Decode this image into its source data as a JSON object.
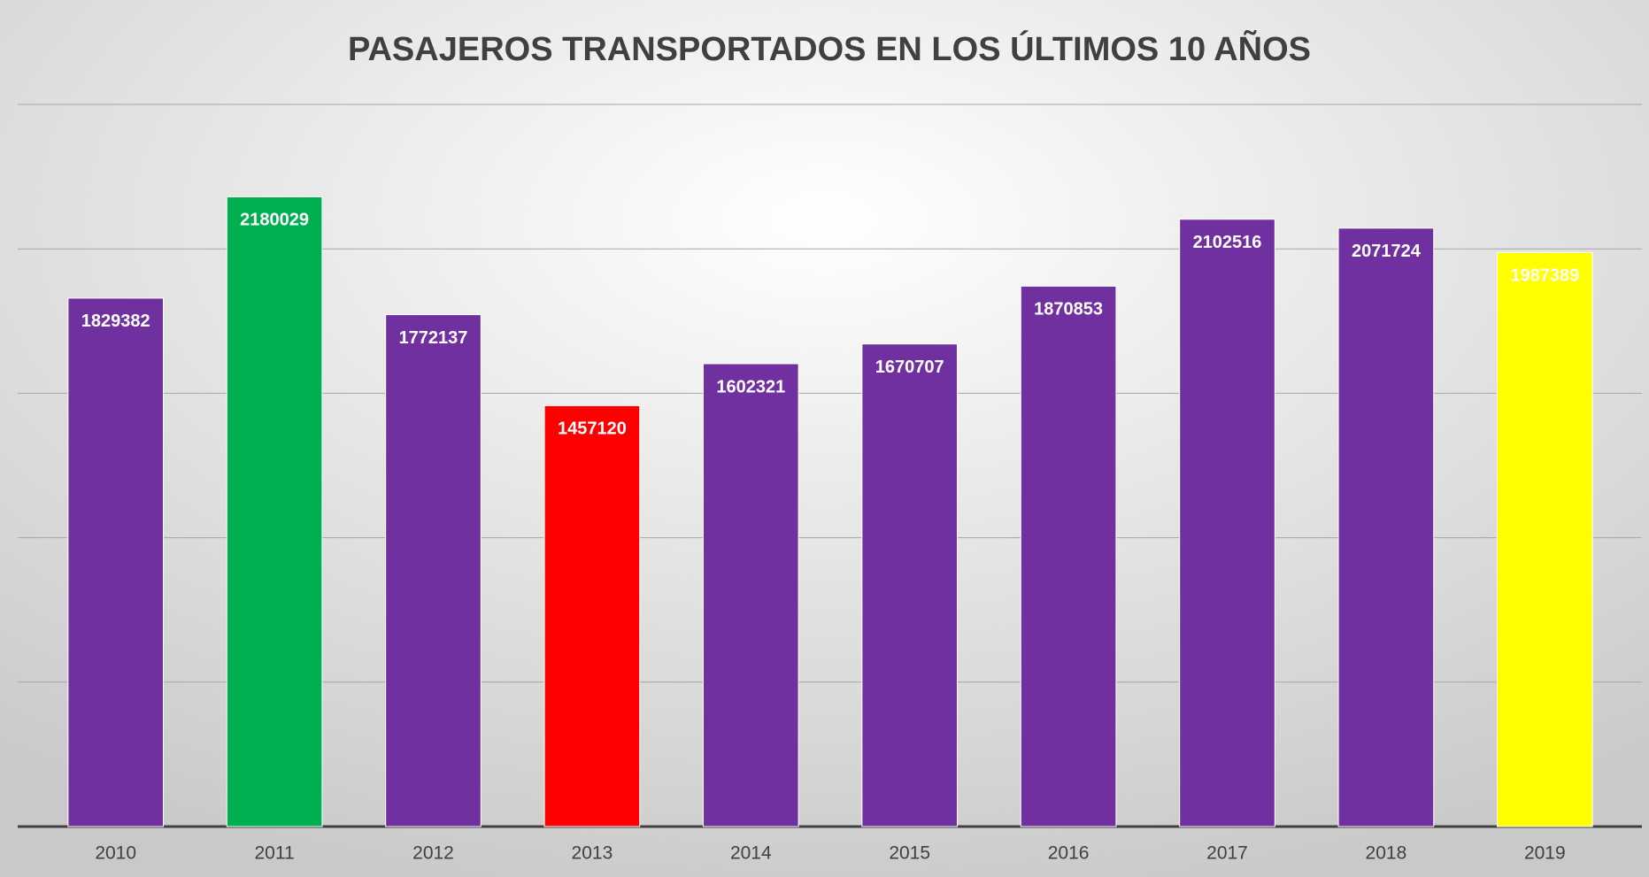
{
  "chart_data": {
    "type": "bar",
    "title": "PASAJEROS TRANSPORTADOS EN LOS ÚLTIMOS 10 AÑOS",
    "categories": [
      "2010",
      "2011",
      "2012",
      "2013",
      "2014",
      "2015",
      "2016",
      "2017",
      "2018",
      "2019"
    ],
    "values": [
      1829382,
      2180029,
      1772137,
      1457120,
      1602321,
      1670707,
      1870853,
      2102516,
      2071724,
      1987389
    ],
    "colors": [
      "#7030a0",
      "#00b050",
      "#7030a0",
      "#ff0000",
      "#7030a0",
      "#7030a0",
      "#7030a0",
      "#7030a0",
      "#7030a0",
      "#ffff00"
    ],
    "ylim": [
      0,
      2500000
    ],
    "yticks": [
      0,
      500000,
      1000000,
      1500000,
      2000000,
      2500000
    ],
    "grid": true
  }
}
